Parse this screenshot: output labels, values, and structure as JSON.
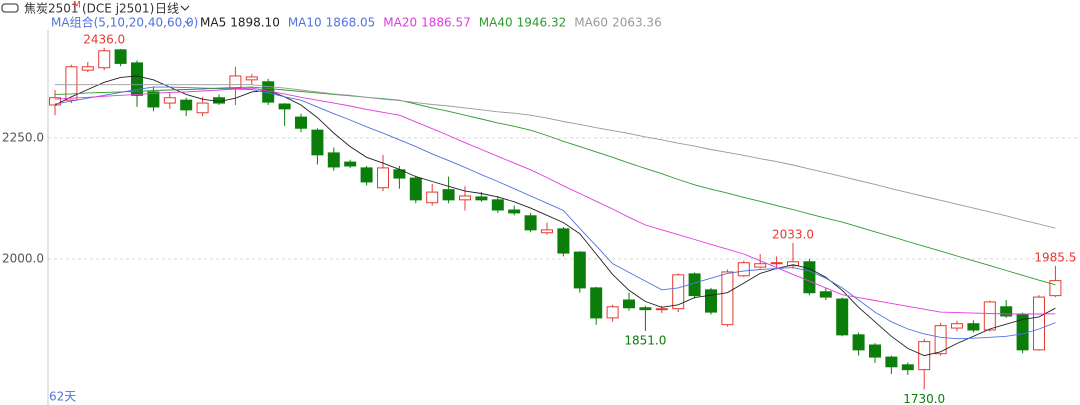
{
  "header": {
    "symbol": "焦炭2501",
    "flag": "M",
    "code": "(DCE j2501)",
    "period": "日线"
  },
  "chart_data": {
    "type": "candlestick",
    "indicator": "MA组合(5,10,20,40,60,0)",
    "period_count": "62天",
    "open": [
      2318,
      2328,
      2390,
      2395,
      2432,
      2405,
      2345,
      2322,
      2328,
      2302,
      2333,
      2353,
      2370,
      2366,
      2320,
      2293,
      2266,
      2219,
      2200,
      2188,
      2147,
      2184,
      2167,
      2116,
      2143,
      2122,
      2128,
      2122,
      2101,
      2089,
      2054,
      2062,
      2014,
      1940,
      1878,
      1915,
      1899,
      1896,
      1897,
      1969,
      1936,
      1864,
      1965,
      1983,
      1990,
      1986,
      1994,
      1932,
      1917,
      1843,
      1822,
      1797,
      1781,
      1771,
      1804,
      1857,
      1866,
      1853,
      1901,
      1886,
      1812,
      1924
    ],
    "high": [
      2349,
      2401,
      2407,
      2436,
      2434,
      2410,
      2356,
      2345,
      2333,
      2335,
      2340,
      2397,
      2382,
      2372,
      2322,
      2300,
      2270,
      2230,
      2205,
      2192,
      2215,
      2192,
      2172,
      2155,
      2170,
      2150,
      2138,
      2130,
      2110,
      2095,
      2075,
      2066,
      2016,
      1942,
      1905,
      1930,
      1903,
      1903,
      1970,
      1972,
      1940,
      1978,
      1996,
      2010,
      2005,
      2033,
      2000,
      1940,
      1920,
      1848,
      1826,
      1800,
      1786,
      1835,
      1868,
      1872,
      1873,
      1914,
      1915,
      1889,
      1925,
      1985.5
    ],
    "low": [
      2297,
      2322,
      2386,
      2390,
      2398,
      2314,
      2305,
      2310,
      2295,
      2295,
      2318,
      2318,
      2360,
      2318,
      2275,
      2262,
      2195,
      2182,
      2188,
      2152,
      2140,
      2145,
      2115,
      2110,
      2115,
      2100,
      2118,
      2095,
      2090,
      2055,
      2050,
      2005,
      1930,
      1864,
      1870,
      1893,
      1851,
      1888,
      1890,
      1918,
      1885,
      1860,
      1962,
      1980,
      1978,
      1980,
      1925,
      1915,
      1840,
      1800,
      1785,
      1762,
      1760,
      1730,
      1800,
      1850,
      1848,
      1850,
      1878,
      1805,
      1810,
      1921
    ],
    "close": [
      2333,
      2397,
      2397,
      2430,
      2404,
      2338,
      2314,
      2333,
      2308,
      2322,
      2322,
      2378,
      2376,
      2324,
      2310,
      2270,
      2215,
      2190,
      2192,
      2159,
      2188,
      2167,
      2122,
      2138,
      2122,
      2130,
      2122,
      2101,
      2095,
      2060,
      2060,
      2012,
      1940,
      1878,
      1901,
      1899,
      1895,
      1897,
      1967,
      1924,
      1890,
      1973,
      1992,
      1990,
      1992,
      1994,
      1930,
      1921,
      1843,
      1812,
      1797,
      1777,
      1771,
      1829,
      1862,
      1866,
      1853,
      1911,
      1882,
      1812,
      1921,
      1955
    ],
    "high_labels": [
      null,
      null,
      null,
      "2436.0",
      null,
      null,
      null,
      null,
      null,
      null,
      null,
      null,
      null,
      null,
      null,
      null,
      null,
      null,
      null,
      null,
      null,
      null,
      null,
      null,
      null,
      null,
      null,
      null,
      null,
      null,
      null,
      null,
      null,
      null,
      null,
      null,
      null,
      null,
      null,
      null,
      null,
      null,
      null,
      null,
      null,
      "2033.0",
      null,
      null,
      null,
      null,
      null,
      null,
      null,
      null,
      null,
      null,
      null,
      null,
      null,
      null,
      null,
      "1985.5"
    ],
    "low_labels": [
      null,
      null,
      null,
      null,
      null,
      null,
      null,
      null,
      null,
      null,
      null,
      null,
      null,
      null,
      null,
      null,
      null,
      null,
      null,
      null,
      null,
      null,
      null,
      null,
      null,
      null,
      null,
      null,
      null,
      null,
      null,
      null,
      null,
      null,
      null,
      null,
      "1851.0",
      null,
      null,
      null,
      null,
      null,
      null,
      null,
      null,
      null,
      null,
      null,
      null,
      null,
      null,
      null,
      null,
      "1730.0",
      null,
      null,
      null,
      null,
      null,
      null,
      null,
      null
    ],
    "up_color": "#e8392f",
    "down_color": "#0b7d0b",
    "series": [
      {
        "name": "MA5",
        "label": "1898.10",
        "color": "#222222",
        "values": [
          2318,
          2335,
          2350,
          2365,
          2375,
          2378,
          2370,
          2355,
          2340,
          2330,
          2325,
          2332,
          2345,
          2348,
          2335,
          2318,
          2292,
          2260,
          2232,
          2210,
          2198,
          2185,
          2170,
          2160,
          2150,
          2140,
          2135,
          2128,
          2118,
          2105,
          2090,
          2075,
          2052,
          2010,
          1968,
          1935,
          1912,
          1900,
          1905,
          1920,
          1925,
          1930,
          1950,
          1970,
          1980,
          1988,
          1980,
          1962,
          1935,
          1900,
          1870,
          1840,
          1815,
          1800,
          1808,
          1825,
          1840,
          1855,
          1865,
          1875,
          1880,
          1898.1
        ]
      },
      {
        "name": "MA10",
        "label": "1868.05",
        "color": "#4f74e0",
        "values": [
          2320,
          2326,
          2332,
          2338,
          2344,
          2350,
          2355,
          2355,
          2354,
          2353,
          2352,
          2351,
          2350,
          2343,
          2335,
          2328,
          2314,
          2300,
          2287,
          2273,
          2260,
          2246,
          2232,
          2217,
          2203,
          2189,
          2174,
          2160,
          2145,
          2130,
          2115,
          2100,
          2063,
          2027,
          1990,
          1972,
          1954,
          1936,
          1940,
          1950,
          1960,
          1970,
          1975,
          1978,
          1980,
          1982,
          1975,
          1960,
          1940,
          1915,
          1890,
          1870,
          1855,
          1845,
          1838,
          1835,
          1836,
          1838,
          1840,
          1845,
          1855,
          1868.05
        ]
      },
      {
        "name": "MA20",
        "label": "1886.57",
        "color": "#e03ce0",
        "values": [
          2330,
          2332,
          2334,
          2336,
          2338,
          2340,
          2342,
          2344,
          2345,
          2347,
          2349,
          2351,
          2353,
          2347,
          2341,
          2334,
          2328,
          2322,
          2316,
          2309,
          2303,
          2297,
          2283,
          2269,
          2255,
          2240,
          2226,
          2212,
          2198,
          2184,
          2168,
          2151,
          2135,
          2119,
          2103,
          2086,
          2070,
          2060,
          2050,
          2040,
          2030,
          2020,
          2010,
          1996,
          1982,
          1968,
          1954,
          1940,
          1926,
          1920,
          1914,
          1908,
          1902,
          1896,
          1890,
          1889,
          1888,
          1887,
          1886,
          1886,
          1886,
          1886.57
        ]
      },
      {
        "name": "MA40",
        "label": "1946.32",
        "color": "#2e9a2e",
        "values": [
          2340,
          2341,
          2343,
          2344,
          2345,
          2346,
          2348,
          2349,
          2350,
          2351,
          2353,
          2354,
          2355,
          2352,
          2349,
          2346,
          2343,
          2340,
          2337,
          2334,
          2331,
          2328,
          2320,
          2312,
          2305,
          2297,
          2289,
          2281,
          2274,
          2266,
          2255,
          2243,
          2232,
          2221,
          2210,
          2198,
          2187,
          2176,
          2164,
          2153,
          2144,
          2136,
          2127,
          2119,
          2110,
          2102,
          2093,
          2084,
          2076,
          2066,
          2056,
          2046,
          2036,
          2026,
          2016,
          2006,
          1996,
          1986,
          1976,
          1966,
          1956,
          1946.32
        ]
      },
      {
        "name": "MA60",
        "label": "2063.36",
        "color": "#9a9a9a",
        "values": [
          2360,
          2360,
          2360,
          2360,
          2360,
          2360,
          2360,
          2360,
          2360,
          2360,
          2360,
          2360,
          2360,
          2356,
          2353,
          2349,
          2345,
          2341,
          2338,
          2334,
          2330,
          2327,
          2323,
          2319,
          2316,
          2312,
          2308,
          2304,
          2301,
          2297,
          2291,
          2284,
          2278,
          2271,
          2265,
          2259,
          2252,
          2246,
          2239,
          2233,
          2226,
          2220,
          2214,
          2207,
          2201,
          2194,
          2186,
          2178,
          2170,
          2162,
          2154,
          2145,
          2137,
          2129,
          2121,
          2113,
          2105,
          2097,
          2089,
          2080,
          2072,
          2063.36
        ]
      }
    ],
    "ylim": [
      1698,
      2473
    ],
    "yticks": [
      {
        "value": 2250,
        "label": "2250.0"
      },
      {
        "value": 2000,
        "label": "2000.0"
      }
    ],
    "grid": true
  }
}
